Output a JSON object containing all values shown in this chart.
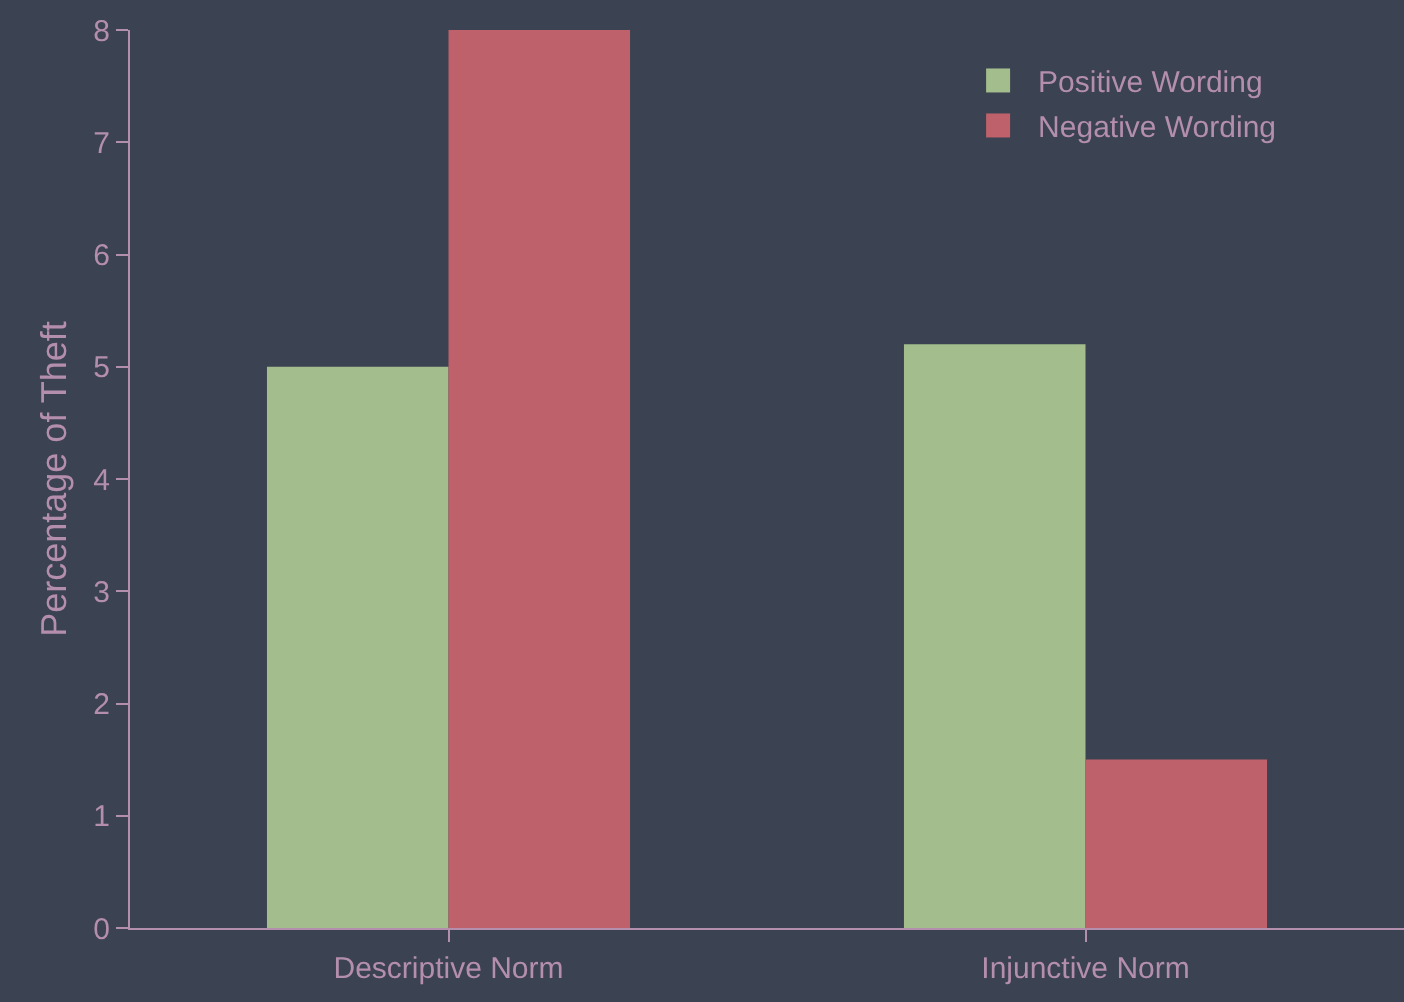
{
  "chart_data": {
    "type": "bar",
    "ylabel": "Percentage of Theft",
    "categories": [
      "Descriptive Norm",
      "Injunctive Norm"
    ],
    "series": [
      {
        "name": "Positive Wording",
        "color": "#a3be8c",
        "values": [
          5,
          5.2
        ]
      },
      {
        "name": "Negative Wording",
        "color": "#bf616a",
        "values": [
          8,
          1.5
        ]
      }
    ],
    "ylim": [
      0,
      8
    ],
    "yticks": [
      0,
      1,
      2,
      3,
      4,
      5,
      6,
      7,
      8
    ],
    "grid": false,
    "legend": "top right"
  }
}
